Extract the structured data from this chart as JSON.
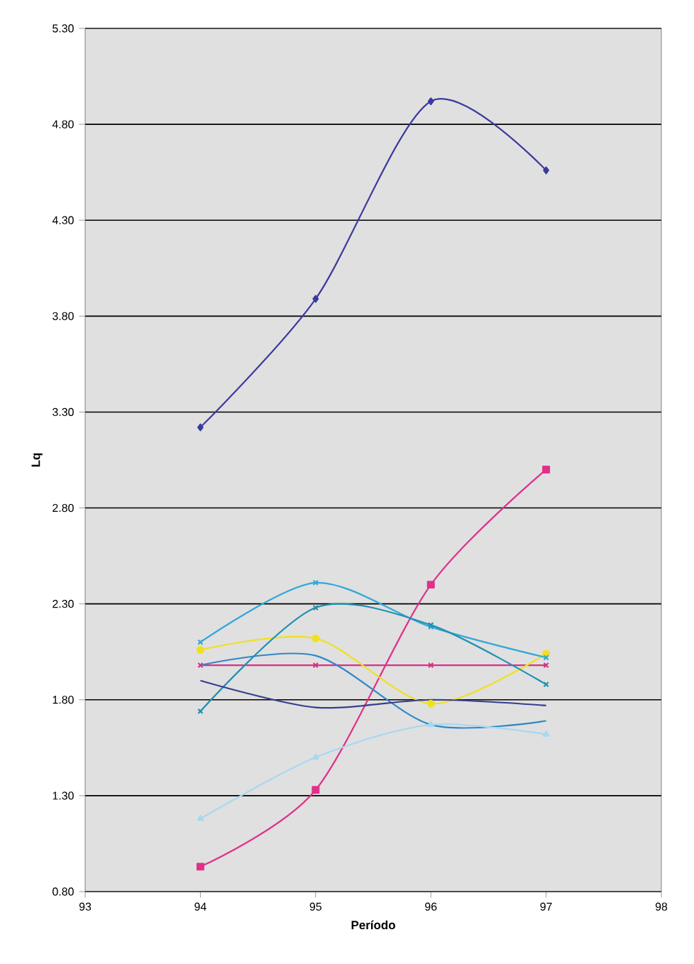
{
  "chart_data": {
    "type": "line",
    "xlabel": "Período",
    "ylabel": "Lq",
    "x": [
      94,
      95,
      96,
      97
    ],
    "series": [
      {
        "color": "#3a3a9e",
        "marker": "diamond",
        "values": [
          3.22,
          3.89,
          4.92,
          4.56
        ]
      },
      {
        "color": "#e0308a",
        "marker": "square",
        "values": [
          0.93,
          1.33,
          2.4,
          3.0
        ]
      },
      {
        "color": "#d8308a",
        "marker": "cross",
        "values": [
          1.98,
          1.98,
          1.98,
          1.98
        ]
      },
      {
        "color": "#f0e020",
        "marker": "circle",
        "values": [
          2.06,
          2.12,
          1.78,
          2.04
        ]
      },
      {
        "color": "#30a8d8",
        "marker": "cross",
        "values": [
          2.1,
          2.41,
          2.18,
          2.02
        ]
      },
      {
        "color": "#2090b0",
        "marker": "cross",
        "values": [
          1.74,
          2.28,
          2.19,
          1.88
        ]
      },
      {
        "color": "#3088c8",
        "marker": "none",
        "values": [
          1.98,
          2.03,
          1.67,
          1.69
        ]
      },
      {
        "color": "#34408e",
        "marker": "none",
        "values": [
          1.9,
          1.76,
          1.8,
          1.77
        ]
      },
      {
        "color": "#a8d8f0",
        "marker": "triangle",
        "values": [
          1.18,
          1.5,
          1.67,
          1.62
        ]
      }
    ],
    "xlim": [
      93,
      98
    ],
    "xticks": [
      93,
      94,
      95,
      96,
      97,
      98
    ],
    "ylim": [
      0.8,
      5.3
    ],
    "yticks": [
      {
        "value": 0.8,
        "label": "0.80"
      },
      {
        "value": 1.3,
        "label": "1.30"
      },
      {
        "value": 1.8,
        "label": "1.80"
      },
      {
        "value": 2.3,
        "label": "2.30"
      },
      {
        "value": 2.8,
        "label": "2.80"
      },
      {
        "value": 3.3,
        "label": "3.30"
      },
      {
        "value": 3.8,
        "label": "3.80"
      },
      {
        "value": 4.3,
        "label": "4.30"
      },
      {
        "value": 4.8,
        "label": "4.80"
      },
      {
        "value": 5.3,
        "label": "5.30"
      }
    ],
    "grid": "y"
  }
}
